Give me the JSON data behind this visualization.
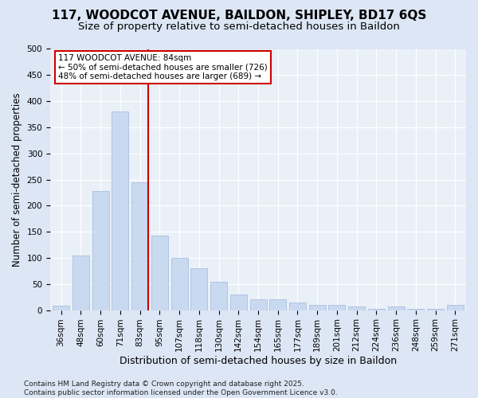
{
  "title1": "117, WOODCOT AVENUE, BAILDON, SHIPLEY, BD17 6QS",
  "title2": "Size of property relative to semi-detached houses in Baildon",
  "xlabel": "Distribution of semi-detached houses by size in Baildon",
  "ylabel": "Number of semi-detached properties",
  "categories": [
    "36sqm",
    "48sqm",
    "60sqm",
    "71sqm",
    "83sqm",
    "95sqm",
    "107sqm",
    "118sqm",
    "130sqm",
    "142sqm",
    "154sqm",
    "165sqm",
    "177sqm",
    "189sqm",
    "201sqm",
    "212sqm",
    "224sqm",
    "236sqm",
    "248sqm",
    "259sqm",
    "271sqm"
  ],
  "values": [
    8,
    105,
    228,
    380,
    245,
    142,
    100,
    80,
    55,
    30,
    20,
    20,
    14,
    10,
    10,
    7,
    2,
    7,
    2,
    2,
    10
  ],
  "bar_color": "#c9d9f0",
  "bar_edge_color": "#a8c0df",
  "vline_bin_index": 4,
  "vline_color": "#cc0000",
  "annotation_line1": "117 WOODCOT AVENUE: 84sqm",
  "annotation_line2": "← 50% of semi-detached houses are smaller (726)",
  "annotation_line3": "48% of semi-detached houses are larger (689) →",
  "annotation_box_facecolor": "white",
  "annotation_box_edgecolor": "#cc0000",
  "ylim_max": 500,
  "yticks": [
    0,
    50,
    100,
    150,
    200,
    250,
    300,
    350,
    400,
    450,
    500
  ],
  "fig_bg": "#dce6f5",
  "axes_bg": "#eaf0f8",
  "title1_fontsize": 11,
  "title2_fontsize": 9.5,
  "xlabel_fontsize": 9,
  "ylabel_fontsize": 8.5,
  "tick_fontsize": 7.5,
  "annot_fontsize": 7.5,
  "footer_fontsize": 6.5,
  "footer": "Contains HM Land Registry data © Crown copyright and database right 2025.\nContains public sector information licensed under the Open Government Licence v3.0."
}
